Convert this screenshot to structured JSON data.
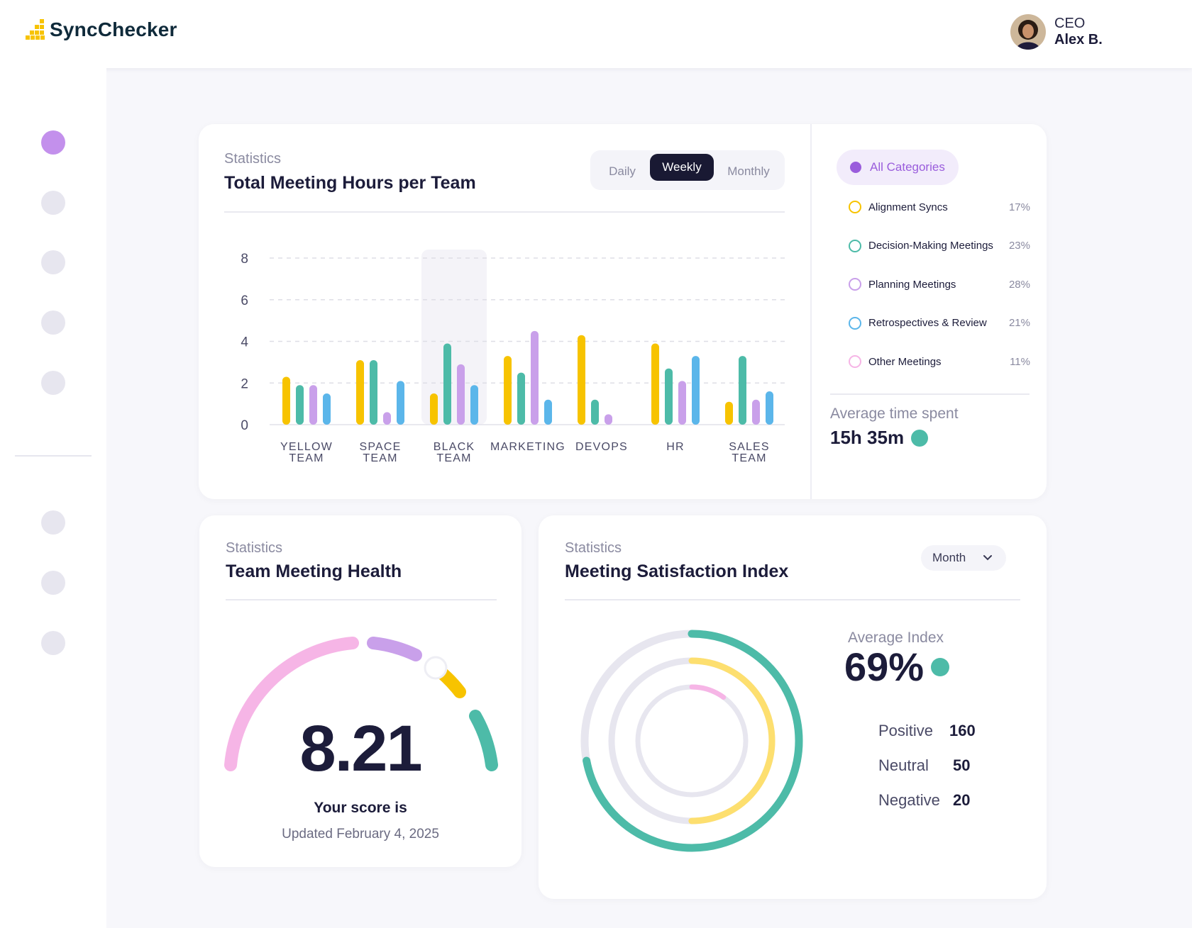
{
  "app": {
    "brand": "SyncChecker",
    "user": {
      "role": "CEO",
      "name": "Alex B."
    }
  },
  "colors": {
    "yellow": "#f7c300",
    "teal": "#4dbba8",
    "purple": "#c9a0ea",
    "blue": "#5bb6ea",
    "pink": "#f6b5e6",
    "accent": "#9a5ddc",
    "dark": "#191933"
  },
  "sidebar": {
    "icons": [
      "nav-icon-1",
      "nav-icon-2",
      "nav-icon-3",
      "nav-icon-4",
      "nav-icon-5",
      "nav-icon-6",
      "nav-icon-7",
      "nav-icon-8"
    ],
    "active_index": 0
  },
  "hours_card": {
    "kicker": "Statistics",
    "title": "Total Meeting Hours per Team",
    "tabs": [
      "Daily",
      "Weekly",
      "Monthly"
    ],
    "active_tab": "Weekly",
    "highlighted_category": "BLACK TEAM"
  },
  "chart_data": {
    "type": "bar",
    "title": "Total Meeting Hours per Team",
    "categories": [
      "YELLOW TEAM",
      "SPACE TEAM",
      "BLACK TEAM",
      "MARKETING",
      "DEVOPS",
      "HR",
      "SALES TEAM"
    ],
    "yticks": [
      0,
      2,
      4,
      6,
      8
    ],
    "ylim": [
      0,
      8
    ],
    "grid": true,
    "series": [
      {
        "color": "#f7c300",
        "values": [
          2.3,
          3.1,
          1.5,
          3.3,
          4.3,
          3.9,
          1.1
        ]
      },
      {
        "color": "#4dbba8",
        "values": [
          1.9,
          3.1,
          3.9,
          2.5,
          1.2,
          2.7,
          3.3
        ]
      },
      {
        "color": "#c9a0ea",
        "values": [
          1.9,
          0.6,
          2.9,
          4.5,
          0.5,
          2.1,
          1.2
        ]
      },
      {
        "color": "#5bb6ea",
        "values": [
          1.5,
          2.1,
          1.9,
          1.2,
          0,
          3.3,
          1.6
        ]
      }
    ]
  },
  "categories_panel": {
    "all_label": "All Categories",
    "items": [
      {
        "label": "Alignment Syncs",
        "pct": "17%",
        "color": "#f7c300"
      },
      {
        "label": "Decision-Making Meetings",
        "pct": "23%",
        "color": "#4dbba8"
      },
      {
        "label": "Planning Meetings",
        "pct": "28%",
        "color": "#c9a0ea"
      },
      {
        "label": "Retrospectives & Review",
        "pct": "21%",
        "color": "#5bb6ea"
      },
      {
        "label": "Other  Meetings",
        "pct": "11%",
        "color": "#f6b5e6"
      }
    ],
    "avg_label": "Average time spent",
    "avg_value": "15h 35m"
  },
  "health_card": {
    "kicker": "Statistics",
    "title": "Team Meeting Health",
    "score": "8.21",
    "score_label": "Your score is",
    "updated": "Updated February 4, 2025"
  },
  "satisfaction_card": {
    "kicker": "Statistics",
    "title": "Meeting Satisfaction Index",
    "dropdown": "Month",
    "avg_label": "Average Index",
    "avg_value": "69%",
    "stats": [
      {
        "label": "Positive",
        "value": "160"
      },
      {
        "label": "Neutral",
        "value": "50"
      },
      {
        "label": "Negative",
        "value": "20"
      }
    ],
    "rings": [
      {
        "fraction": 0.72,
        "color": "#4dbba8"
      },
      {
        "fraction": 0.5,
        "color": "#fddf6f"
      },
      {
        "fraction": 0.1,
        "color": "#f6b5e6"
      }
    ]
  }
}
